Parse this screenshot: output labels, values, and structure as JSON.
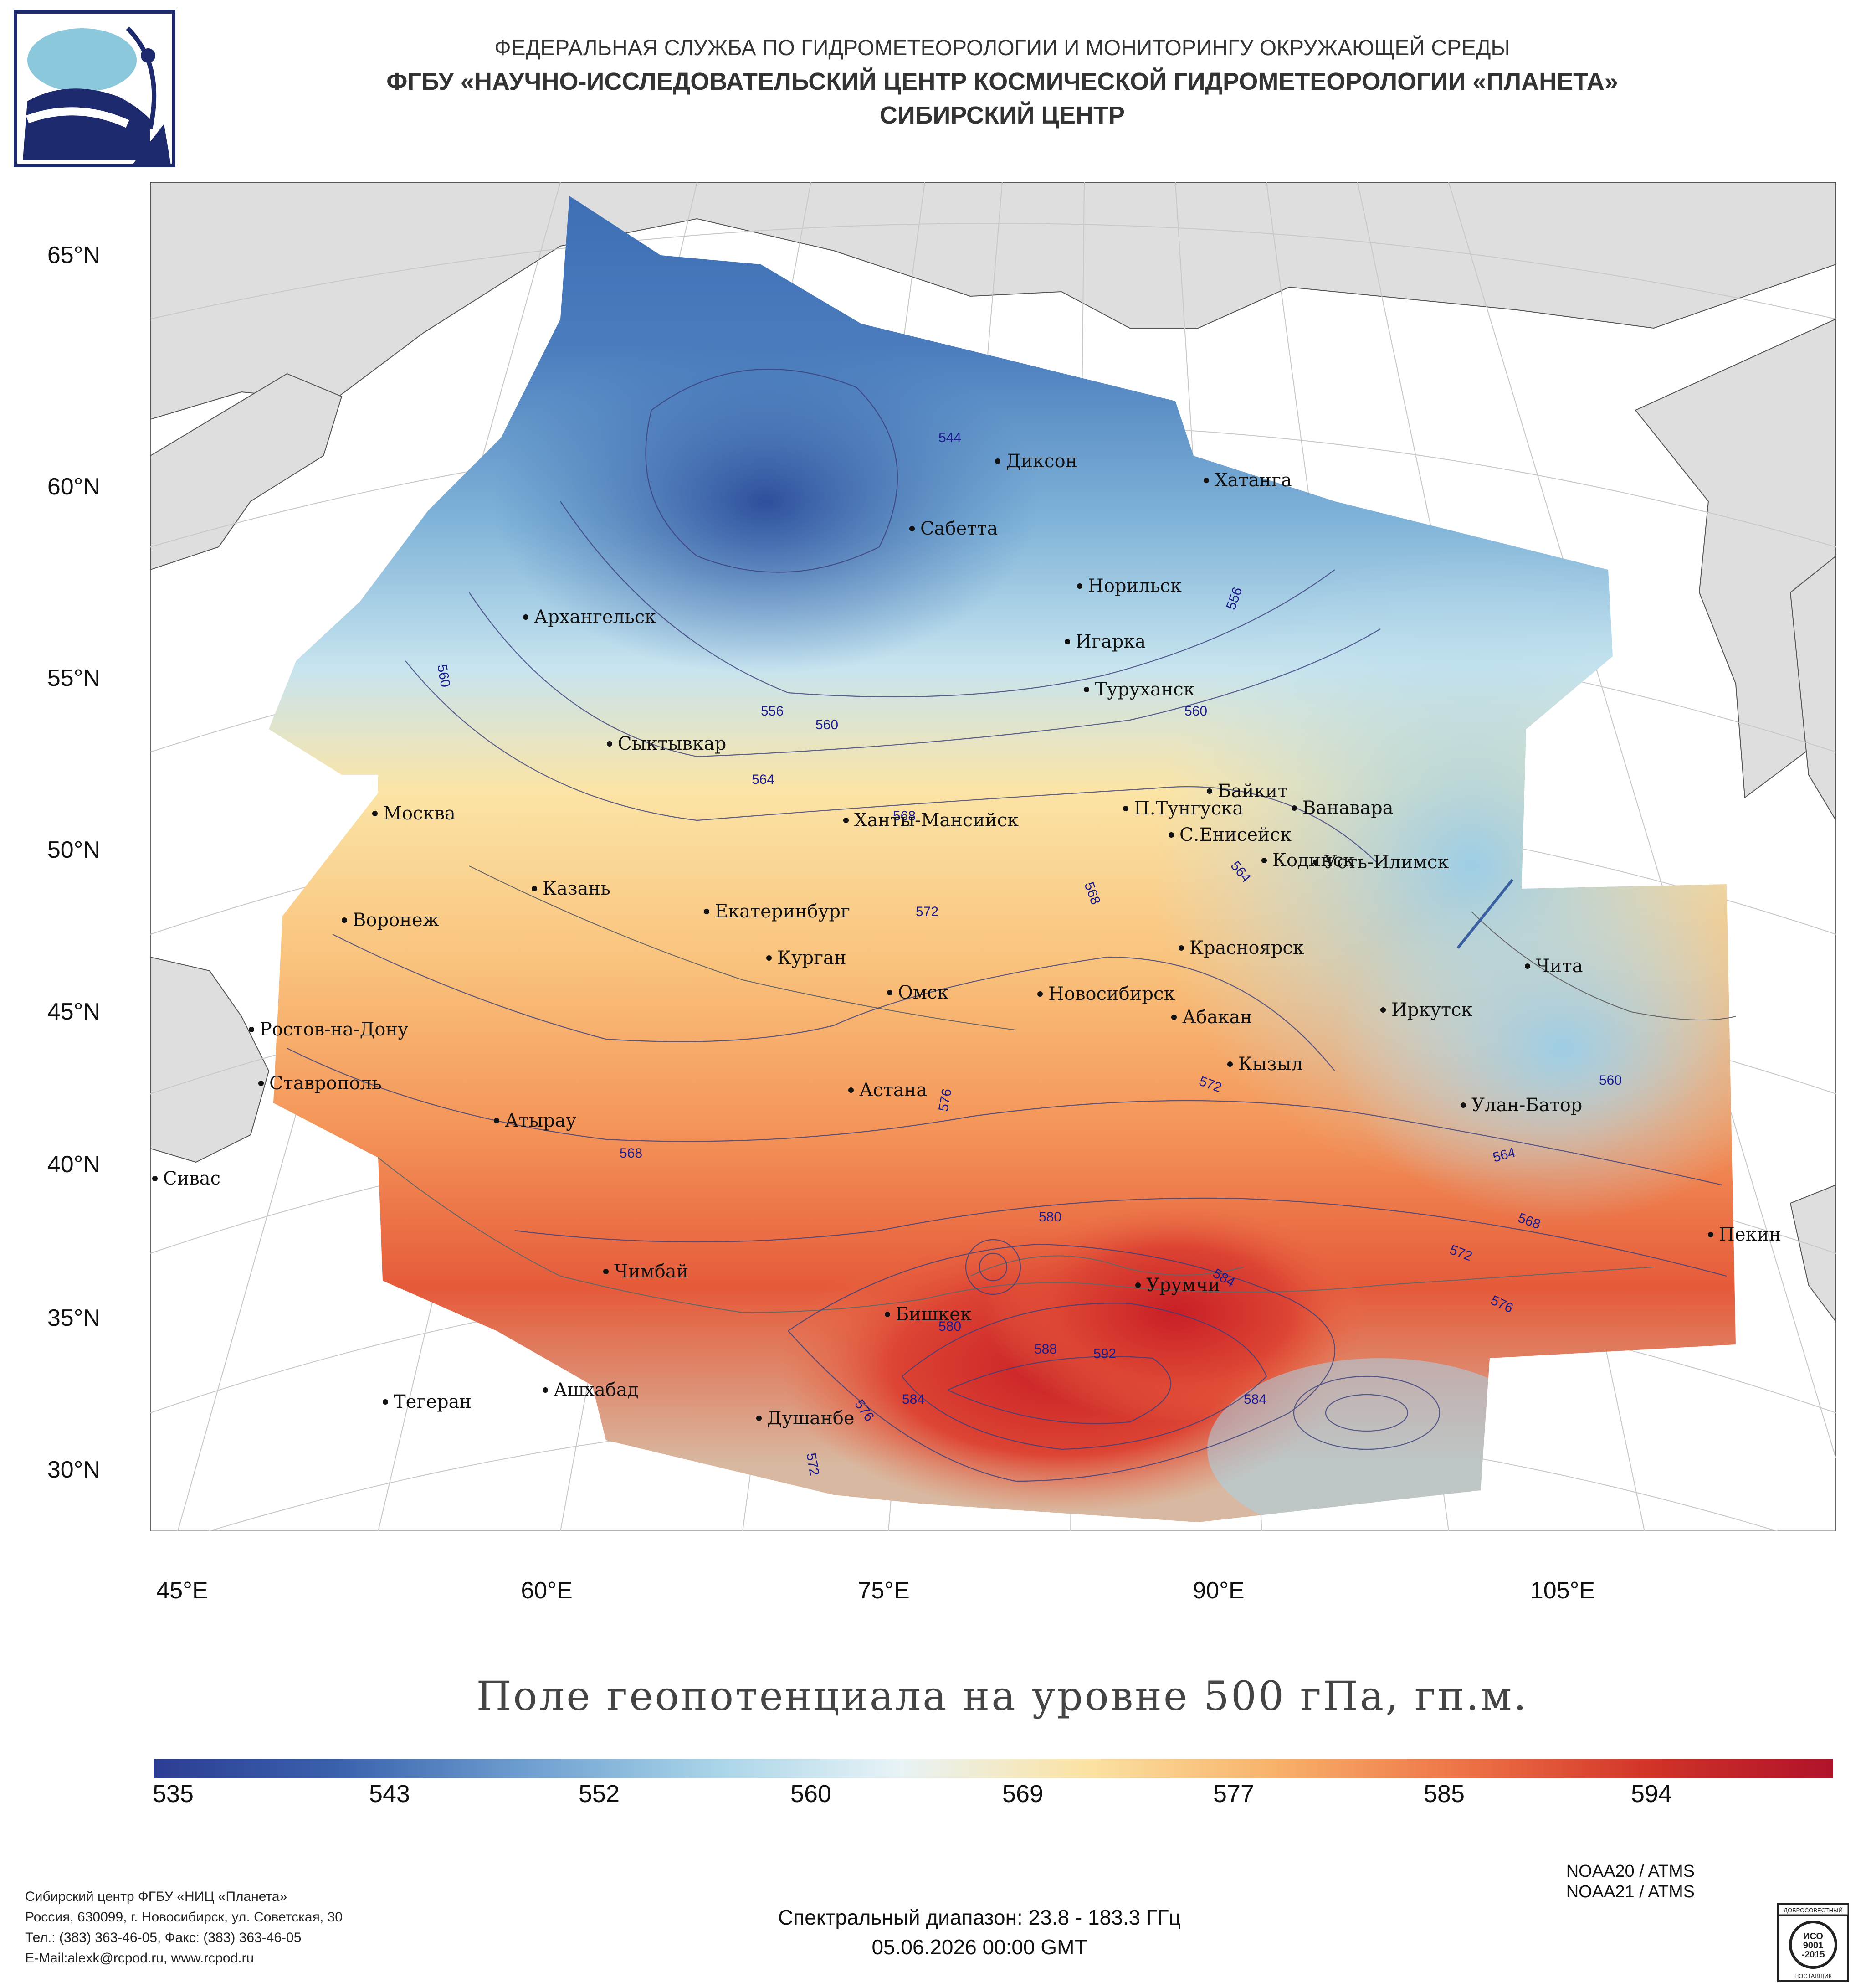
{
  "header": {
    "line1": "ФЕДЕРАЛЬНАЯ СЛУЖБА ПО ГИДРОМЕТЕОРОЛОГИИ И МОНИТОРИНГУ ОКРУЖАЮЩЕЙ СРЕДЫ",
    "line2": "ФГБУ «НАУЧНО-ИССЛЕДОВАТЕЛЬСКИЙ ЦЕНТР КОСМИЧЕСКОЙ ГИДРОМЕТЕОРОЛОГИИ «ПЛАНЕТА»",
    "line3": "СИБИРСКИЙ ЦЕНТР"
  },
  "latitudes": [
    "65°N",
    "60°N",
    "55°N",
    "50°N",
    "45°N",
    "40°N",
    "35°N",
    "30°N"
  ],
  "longitudes": [
    "45°E",
    "60°E",
    "75°E",
    "90°E",
    "105°E"
  ],
  "cities": [
    {
      "name": "Диксон"
    },
    {
      "name": "Хатанга"
    },
    {
      "name": "Сабетта"
    },
    {
      "name": "Норильск"
    },
    {
      "name": "Архангельск"
    },
    {
      "name": "Игарка"
    },
    {
      "name": "Туруханск"
    },
    {
      "name": "Сыктывкар"
    },
    {
      "name": "Байкит"
    },
    {
      "name": "Москва"
    },
    {
      "name": "П.Тунгуска"
    },
    {
      "name": "Ванавара"
    },
    {
      "name": "Ханты-Мансийск"
    },
    {
      "name": "С.Енисейск"
    },
    {
      "name": "Кодинск"
    },
    {
      "name": "Усть-Илимск"
    },
    {
      "name": "Казань"
    },
    {
      "name": "Екатеринбург"
    },
    {
      "name": "Воронеж"
    },
    {
      "name": "Курган"
    },
    {
      "name": "Красноярск"
    },
    {
      "name": "Чита"
    },
    {
      "name": "Омск"
    },
    {
      "name": "Новосибирск"
    },
    {
      "name": "Иркутск"
    },
    {
      "name": "Абакан"
    },
    {
      "name": "Ростов-на-Дону"
    },
    {
      "name": "Кызыл"
    },
    {
      "name": "Ставрополь"
    },
    {
      "name": "Астана"
    },
    {
      "name": "Улан-Батор"
    },
    {
      "name": "Атырау"
    },
    {
      "name": "Сивас"
    },
    {
      "name": "Пекин"
    },
    {
      "name": "Чимбай"
    },
    {
      "name": "Урумчи"
    },
    {
      "name": "Бишкек"
    },
    {
      "name": "Ашхабад"
    },
    {
      "name": "Тегеран"
    },
    {
      "name": "Душанбе"
    }
  ],
  "contour_labels": [
    "544",
    "560",
    "556",
    "560",
    "564",
    "556",
    "560",
    "568",
    "564",
    "568",
    "572",
    "576",
    "568",
    "572",
    "560",
    "564",
    "568",
    "572",
    "576",
    "580",
    "584",
    "580",
    "588",
    "592",
    "584",
    "576",
    "584",
    "572"
  ],
  "map_title": "Поле геопотенциала на уровне 500 гПа, гп.м.",
  "colorbar": {
    "ticks": [
      "535",
      "543",
      "552",
      "560",
      "569",
      "577",
      "585",
      "594"
    ],
    "colors": [
      "#2c3d94",
      "#3a62ad",
      "#6e9fd0",
      "#a8d4e8",
      "#e8f3f6",
      "#fbe2a2",
      "#f8b26a",
      "#ee7447",
      "#d23428",
      "#b0122a"
    ]
  },
  "satellites": [
    "NOAA20 / ATMS",
    "NOAA21 / ATMS"
  ],
  "spectral_range": "Спектральный диапазон: 23.8 - 183.3 ГГц",
  "datetime": "05.06.2026 00:00 GMT",
  "footer": {
    "org": "Сибирский центр ФГБУ «НИЦ «Планета»",
    "address": "Россия, 630099, г. Новосибирск, ул. Советская, 30",
    "phones": "Тел.: (383) 363-46-05, Факс: (383) 363-46-05",
    "email": "E-Mail:alexk@rcpod.ru, www.rcpod.ru"
  },
  "iso_badge": {
    "top": "ДОБРОСОВЕСТНЫЙ",
    "center1": "ИСО",
    "center2": "9001",
    "center3": "-2015",
    "bottom": "ПОСТАВЩИК"
  }
}
